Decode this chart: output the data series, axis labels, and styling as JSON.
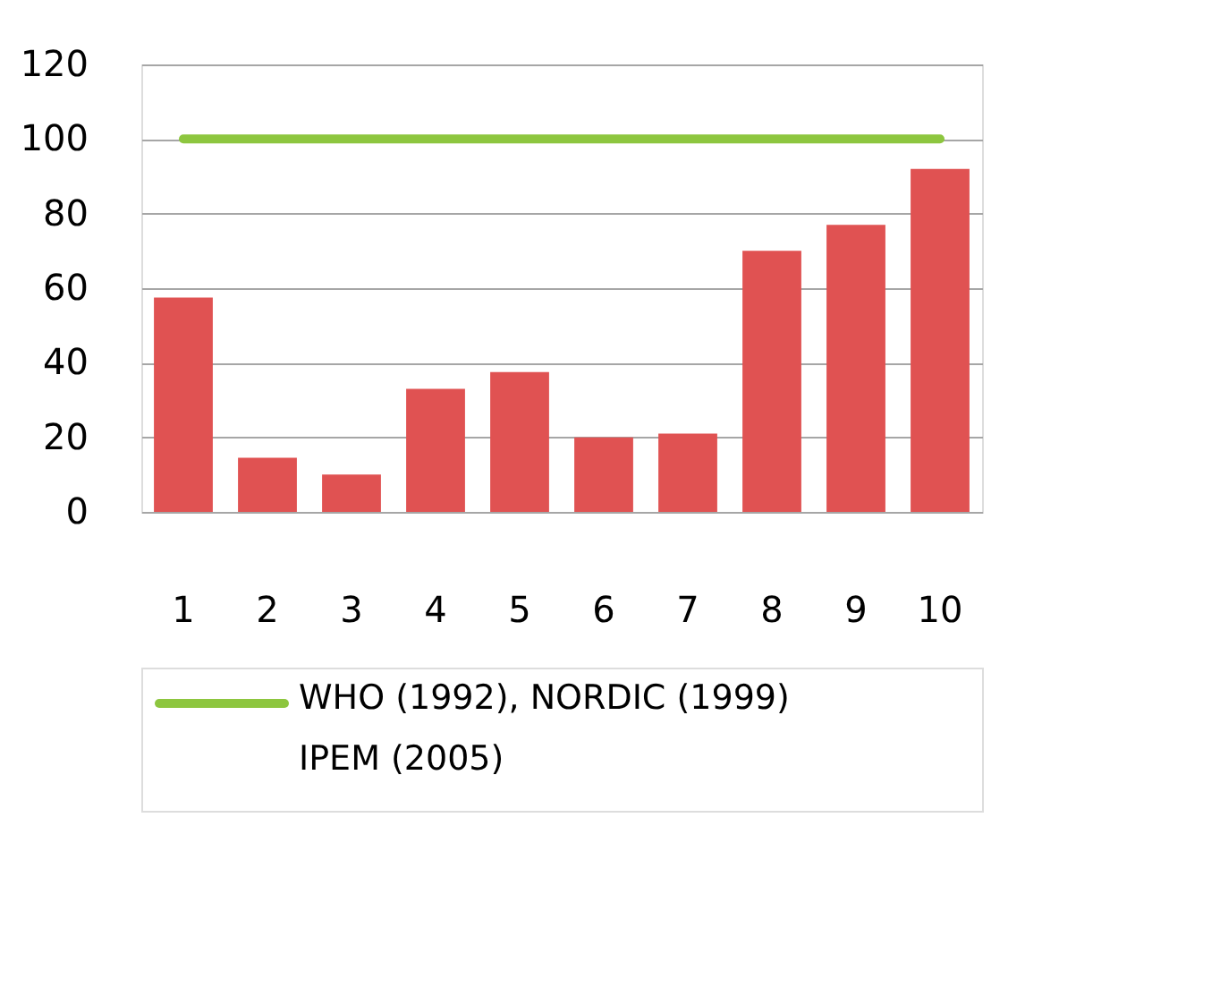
{
  "chart_data": {
    "type": "bar",
    "categories": [
      "1",
      "2",
      "3",
      "4",
      "5",
      "6",
      "7",
      "8",
      "9",
      "10"
    ],
    "series": [
      {
        "color": "#e05252",
        "values": [
          57.5,
          14.5,
          10,
          33,
          37.5,
          20,
          21,
          70,
          77,
          92
        ]
      },
      {
        "type": "line",
        "name": "WHO (1992), NORDIC (1999)\nIPEM (2005)",
        "color": "#8dc63f",
        "values": [
          100,
          100,
          100,
          100,
          100,
          100,
          100,
          100,
          100,
          100
        ]
      }
    ],
    "ylim": [
      0,
      120
    ],
    "yticks": [
      0,
      20,
      40,
      60,
      80,
      100,
      120
    ],
    "grid": "y",
    "legend": "bottom"
  }
}
